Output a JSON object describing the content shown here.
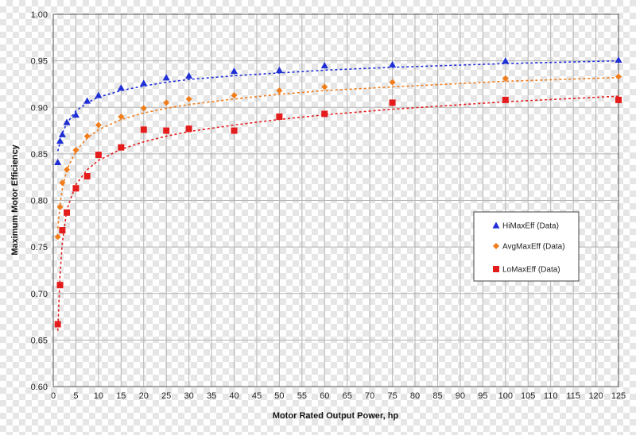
{
  "chart_data": {
    "type": "scatter",
    "title": "",
    "xlabel": "Motor Rated Output Power, hp",
    "ylabel": "Maximum Motor Efficiency",
    "xlim": [
      0,
      125
    ],
    "ylim": [
      0.6,
      1.0
    ],
    "xticks": [
      0,
      5,
      10,
      15,
      20,
      25,
      30,
      35,
      40,
      45,
      50,
      55,
      60,
      65,
      70,
      75,
      80,
      85,
      90,
      95,
      100,
      105,
      110,
      115,
      120,
      125
    ],
    "xtick_labels": [
      "0",
      "5",
      "10",
      "15",
      "20",
      "25",
      "30",
      "35",
      "40",
      "45",
      "50",
      "55",
      "60",
      "65",
      "70",
      "75",
      "80",
      "85",
      "90",
      "95",
      "100",
      "105",
      "110",
      "115",
      "120",
      "125"
    ],
    "yticks": [
      0.6,
      0.65,
      0.7,
      0.75,
      0.8,
      0.85,
      0.9,
      0.95,
      1.0
    ],
    "ytick_labels": [
      "0.60",
      "0.65",
      "0.70",
      "0.75",
      "0.80",
      "0.85",
      "0.90",
      "0.95",
      "1.00"
    ],
    "grid": true,
    "legend_position": "right",
    "series": [
      {
        "name": "HiMaxEff (Data)",
        "marker": "triangle",
        "color": "#1f2fd6",
        "x": [
          1,
          1.5,
          2,
          3,
          5,
          7.5,
          10,
          15,
          20,
          25,
          30,
          40,
          50,
          60,
          75,
          100,
          125
        ],
        "y": [
          0.841,
          0.864,
          0.871,
          0.884,
          0.892,
          0.907,
          0.913,
          0.921,
          0.926,
          0.932,
          0.934,
          0.939,
          0.94,
          0.945,
          0.946,
          0.95,
          0.951
        ],
        "trend": [
          [
            1,
            0.853
          ],
          [
            2,
            0.872
          ],
          [
            3,
            0.883
          ],
          [
            5,
            0.896
          ],
          [
            7.5,
            0.905
          ],
          [
            10,
            0.911
          ],
          [
            15,
            0.918
          ],
          [
            20,
            0.923
          ],
          [
            25,
            0.927
          ],
          [
            30,
            0.93
          ],
          [
            40,
            0.934
          ],
          [
            50,
            0.937
          ],
          [
            60,
            0.94
          ],
          [
            75,
            0.943
          ],
          [
            100,
            0.947
          ],
          [
            125,
            0.95
          ]
        ]
      },
      {
        "name": "AvgMaxEff (Data)",
        "marker": "diamond",
        "color": "#f07c1a",
        "x": [
          1,
          1.5,
          2,
          3,
          5,
          7.5,
          10,
          15,
          20,
          25,
          30,
          40,
          50,
          60,
          75,
          100,
          125
        ],
        "y": [
          0.761,
          0.793,
          0.819,
          0.833,
          0.854,
          0.869,
          0.881,
          0.89,
          0.899,
          0.905,
          0.909,
          0.913,
          0.918,
          0.922,
          0.927,
          0.931,
          0.933
        ],
        "trend": [
          [
            1,
            0.77
          ],
          [
            1.5,
            0.795
          ],
          [
            2,
            0.812
          ],
          [
            3,
            0.833
          ],
          [
            5,
            0.853
          ],
          [
            7.5,
            0.867
          ],
          [
            10,
            0.876
          ],
          [
            15,
            0.887
          ],
          [
            20,
            0.894
          ],
          [
            25,
            0.899
          ],
          [
            30,
            0.903
          ],
          [
            40,
            0.909
          ],
          [
            50,
            0.914
          ],
          [
            60,
            0.918
          ],
          [
            75,
            0.922
          ],
          [
            100,
            0.928
          ],
          [
            125,
            0.932
          ]
        ]
      },
      {
        "name": "LoMaxEff (Data)",
        "marker": "square",
        "color": "#e51c1c",
        "x": [
          1,
          1.5,
          2,
          3,
          5,
          7.5,
          10,
          15,
          20,
          25,
          30,
          40,
          50,
          60,
          75,
          100,
          125
        ],
        "y": [
          0.667,
          0.709,
          0.768,
          0.787,
          0.813,
          0.826,
          0.849,
          0.857,
          0.876,
          0.875,
          0.877,
          0.875,
          0.89,
          0.893,
          0.905,
          0.908,
          0.908
        ],
        "trend": [
          [
            1,
            0.66
          ],
          [
            1.5,
            0.72
          ],
          [
            2,
            0.755
          ],
          [
            3,
            0.79
          ],
          [
            5,
            0.817
          ],
          [
            7.5,
            0.833
          ],
          [
            10,
            0.843
          ],
          [
            15,
            0.855
          ],
          [
            20,
            0.863
          ],
          [
            25,
            0.869
          ],
          [
            30,
            0.874
          ],
          [
            40,
            0.881
          ],
          [
            50,
            0.887
          ],
          [
            60,
            0.892
          ],
          [
            75,
            0.898
          ],
          [
            100,
            0.906
          ],
          [
            125,
            0.912
          ]
        ]
      }
    ]
  }
}
